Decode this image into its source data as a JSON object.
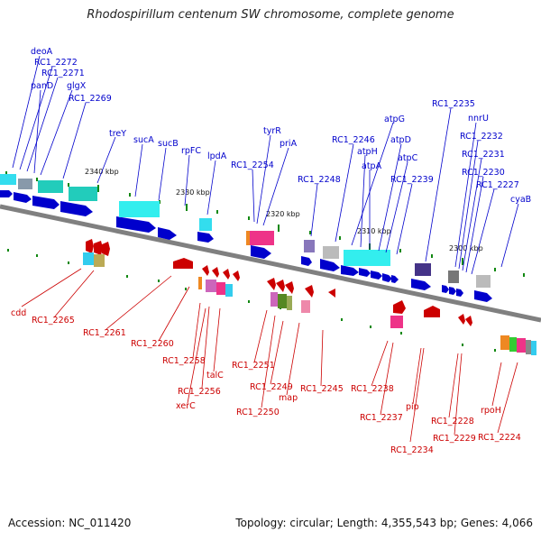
{
  "title": "Rhodospirillum centenum SW chromosome, complete genome",
  "footer": {
    "accession": "Accession: NC_011420",
    "summary": "Topology: circular; Length: 4,355,543 bp; Genes: 4,066"
  },
  "colors": {
    "forward": "#0000cc",
    "reverse": "#cc0000",
    "axis": "#808080"
  },
  "ticks": [
    "2340 kbp",
    "2330 kbp",
    "2320 kbp",
    "2310 kbp",
    "2300 kbp"
  ],
  "forward_labels": [
    "deoA",
    "RC1_2272",
    "RC1_2271",
    "panD",
    "glgX",
    "RC1_2269",
    "treY",
    "sucA",
    "sucB",
    "rpFC",
    "lpdA",
    "RC1_2254",
    "tyrR",
    "priA",
    "RC1_2248",
    "RC1_2246",
    "atpG",
    "atpH",
    "atpA",
    "atpD",
    "atpC",
    "RC1_2239",
    "RC1_2235",
    "nnrU",
    "RC1_2232",
    "RC1_2231",
    "RC1_2230",
    "RC1_2227",
    "cyaB"
  ],
  "reverse_labels": [
    "cdd",
    "RC1_2265",
    "RC1_2261",
    "RC1_2260",
    "RC1_2258",
    "RC1_2256",
    "talC",
    "xerC",
    "RC1_2251",
    "RC1_2250",
    "RC1_2249",
    "map",
    "RC1_2245",
    "RC1_2238",
    "RC1_2237",
    "pip",
    "RC1_2234",
    "RC1_2228",
    "RC1_2229",
    "rpoH",
    "RC1_2224"
  ]
}
